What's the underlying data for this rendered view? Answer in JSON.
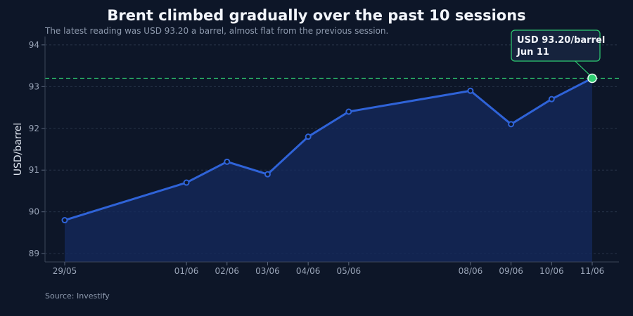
{
  "chart_data": {
    "type": "line",
    "title": "Brent climbed gradually over the past 10 sessions",
    "subtitle": "The latest reading was USD 93.20 a barrel, almost flat from the previous session.",
    "source": "Source: Investify",
    "ylabel": "USD/barrel",
    "xlabel": "",
    "x": [
      "29/05",
      "01/06",
      "02/06",
      "03/06",
      "04/06",
      "05/06",
      "08/06",
      "09/06",
      "10/06",
      "11/06"
    ],
    "series": [
      {
        "values": [
          89.8,
          90.7,
          91.2,
          90.9,
          91.8,
          92.4,
          92.9,
          92.1,
          92.7,
          93.2
        ]
      }
    ],
    "ylim": [
      88.8,
      94.2
    ],
    "yticks": [
      89,
      90,
      91,
      92,
      93,
      94
    ],
    "reference_line": 93.2,
    "callout": {
      "line1": "USD 93.20/barrel",
      "line2": "Jun 11"
    },
    "grid": true,
    "colors": {
      "line": "#2f63d8",
      "area": "#142a5e",
      "highlight": "#2ecc71",
      "grid": "#283449",
      "callout_bg": "#16233d"
    }
  }
}
